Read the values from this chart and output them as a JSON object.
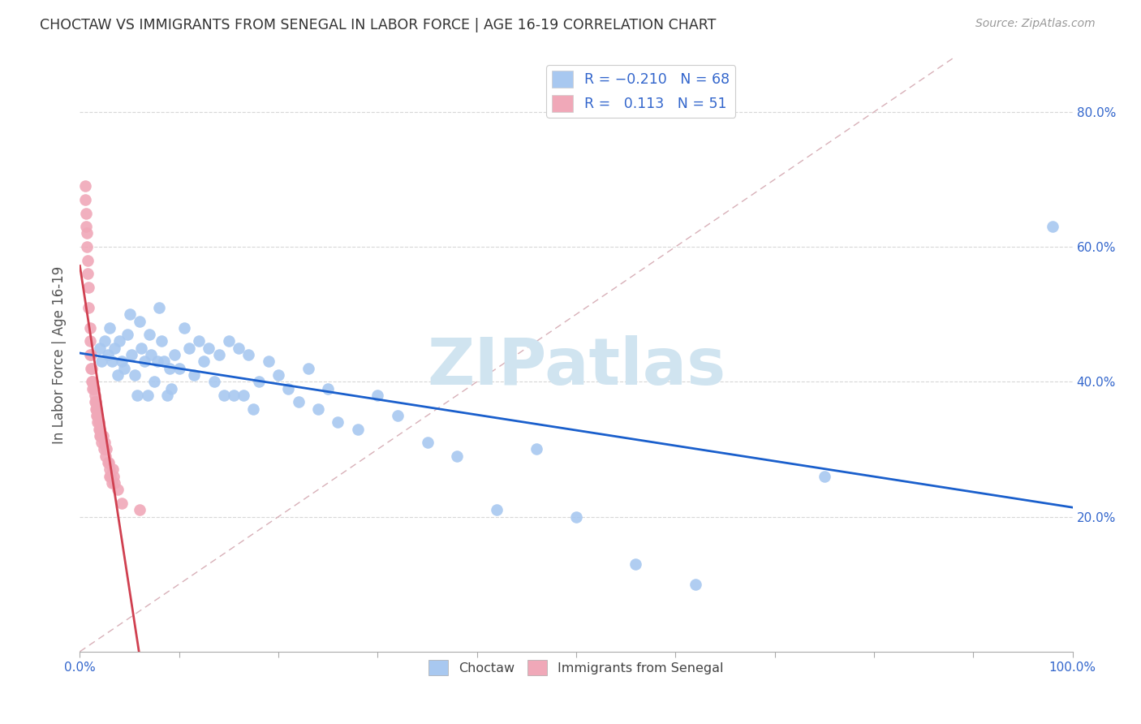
{
  "title": "CHOCTAW VS IMMIGRANTS FROM SENEGAL IN LABOR FORCE | AGE 16-19 CORRELATION CHART",
  "source": "Source: ZipAtlas.com",
  "ylabel": "In Labor Force | Age 16-19",
  "xlim": [
    0.0,
    1.0
  ],
  "ylim": [
    0.0,
    0.88
  ],
  "choctaw_color": "#a8c8f0",
  "senegal_color": "#f0a8b8",
  "trend_blue_color": "#1a5fcc",
  "trend_pink_color": "#d04050",
  "diagonal_color": "#d8b0b8",
  "watermark_text": "ZIPatlas",
  "watermark_color": "#d0e4f0",
  "background": "#ffffff",
  "choctaw_x": [
    0.02,
    0.022,
    0.025,
    0.028,
    0.03,
    0.032,
    0.035,
    0.038,
    0.04,
    0.042,
    0.045,
    0.048,
    0.05,
    0.052,
    0.055,
    0.058,
    0.06,
    0.062,
    0.065,
    0.068,
    0.07,
    0.072,
    0.075,
    0.078,
    0.08,
    0.082,
    0.085,
    0.088,
    0.09,
    0.092,
    0.095,
    0.1,
    0.105,
    0.11,
    0.115,
    0.12,
    0.125,
    0.13,
    0.135,
    0.14,
    0.145,
    0.15,
    0.155,
    0.16,
    0.165,
    0.17,
    0.175,
    0.18,
    0.19,
    0.2,
    0.21,
    0.22,
    0.23,
    0.24,
    0.25,
    0.26,
    0.28,
    0.3,
    0.32,
    0.35,
    0.38,
    0.42,
    0.46,
    0.5,
    0.56,
    0.62,
    0.75,
    0.98
  ],
  "choctaw_y": [
    0.45,
    0.43,
    0.46,
    0.44,
    0.48,
    0.43,
    0.45,
    0.41,
    0.46,
    0.43,
    0.42,
    0.47,
    0.5,
    0.44,
    0.41,
    0.38,
    0.49,
    0.45,
    0.43,
    0.38,
    0.47,
    0.44,
    0.4,
    0.43,
    0.51,
    0.46,
    0.43,
    0.38,
    0.42,
    0.39,
    0.44,
    0.42,
    0.48,
    0.45,
    0.41,
    0.46,
    0.43,
    0.45,
    0.4,
    0.44,
    0.38,
    0.46,
    0.38,
    0.45,
    0.38,
    0.44,
    0.36,
    0.4,
    0.43,
    0.41,
    0.39,
    0.37,
    0.42,
    0.36,
    0.39,
    0.34,
    0.33,
    0.38,
    0.35,
    0.31,
    0.29,
    0.21,
    0.3,
    0.2,
    0.13,
    0.1,
    0.26,
    0.63
  ],
  "senegal_x": [
    0.005,
    0.005,
    0.006,
    0.006,
    0.007,
    0.007,
    0.008,
    0.008,
    0.009,
    0.009,
    0.01,
    0.01,
    0.01,
    0.011,
    0.011,
    0.012,
    0.012,
    0.013,
    0.013,
    0.014,
    0.015,
    0.015,
    0.016,
    0.016,
    0.017,
    0.017,
    0.018,
    0.018,
    0.019,
    0.019,
    0.02,
    0.02,
    0.021,
    0.022,
    0.023,
    0.024,
    0.025,
    0.026,
    0.027,
    0.028,
    0.029,
    0.03,
    0.03,
    0.031,
    0.032,
    0.033,
    0.034,
    0.035,
    0.038,
    0.042,
    0.06
  ],
  "senegal_y": [
    0.69,
    0.67,
    0.65,
    0.63,
    0.62,
    0.6,
    0.58,
    0.56,
    0.54,
    0.51,
    0.48,
    0.46,
    0.44,
    0.44,
    0.42,
    0.42,
    0.4,
    0.4,
    0.39,
    0.39,
    0.38,
    0.37,
    0.37,
    0.36,
    0.36,
    0.35,
    0.35,
    0.34,
    0.34,
    0.33,
    0.33,
    0.32,
    0.32,
    0.31,
    0.32,
    0.3,
    0.31,
    0.29,
    0.3,
    0.28,
    0.28,
    0.27,
    0.26,
    0.26,
    0.25,
    0.27,
    0.26,
    0.25,
    0.24,
    0.22,
    0.21
  ]
}
